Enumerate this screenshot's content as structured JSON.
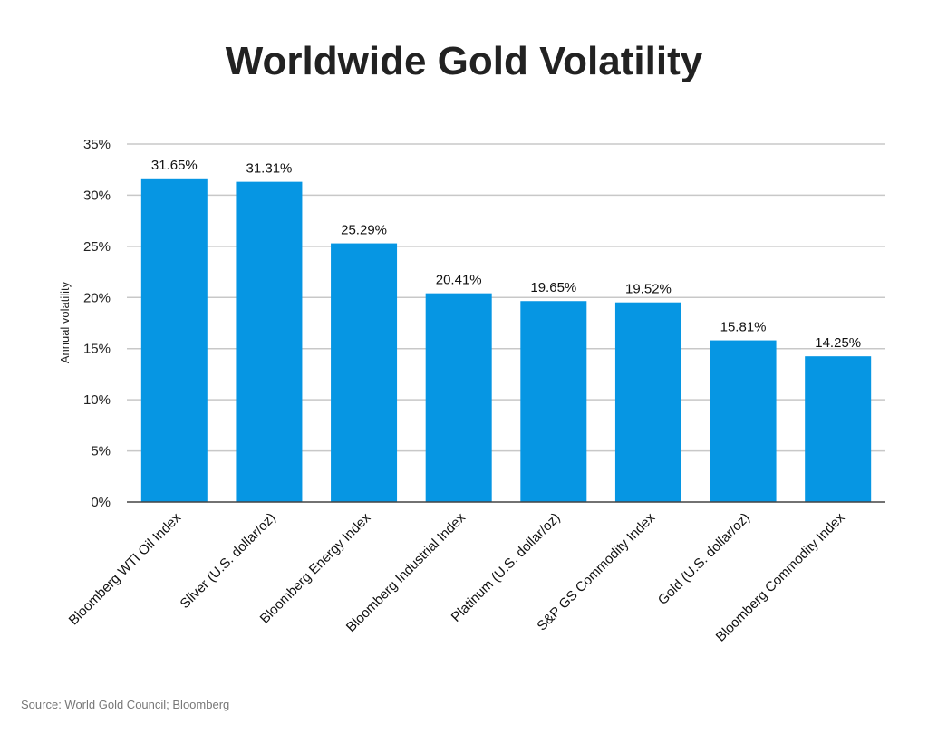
{
  "chart_data": {
    "type": "bar",
    "title": "Worldwide Gold Volatility",
    "ylabel": "Annual volatility",
    "xlabel": "",
    "categories": [
      "Bloomberg WTI Oil Index",
      "Sliver (U.S. dollar/oz)",
      "Bloomberg Energy Index",
      "Bloomberg Industrial Index",
      "Platinum (U.S. dollar/oz)",
      "S&P GS Commodity Index",
      "Gold (U.S. dollar/oz)",
      "Bloomberg Commodity Index"
    ],
    "values": [
      31.65,
      31.31,
      25.29,
      20.41,
      19.65,
      19.52,
      15.81,
      14.25
    ],
    "data_labels": [
      "31.65%",
      "31.31%",
      "25.29%",
      "20.41%",
      "19.65%",
      "19.52%",
      "15.81%",
      "14.25%"
    ],
    "ylim": [
      0,
      35
    ],
    "yticks": [
      0,
      5,
      10,
      15,
      20,
      25,
      30,
      35
    ],
    "ytick_labels": [
      "0%",
      "5%",
      "10%",
      "15%",
      "20%",
      "25%",
      "30%",
      "35%"
    ],
    "grid": true,
    "bar_color": "#0696e3",
    "source": "Source: World Gold Council; Bloomberg"
  }
}
